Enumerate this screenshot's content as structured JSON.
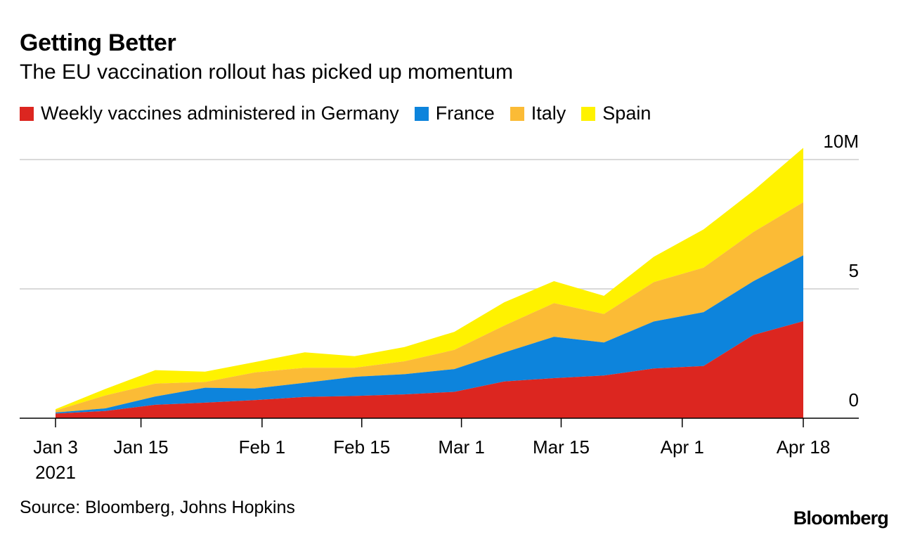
{
  "header": {
    "title": "Getting Better",
    "subtitle": "The EU vaccination rollout has picked up momentum"
  },
  "footer": {
    "source": "Source: Bloomberg, Johns Hopkins",
    "logo": "Bloomberg"
  },
  "chart_data": {
    "type": "area",
    "stacked": true,
    "title": "Getting Better",
    "subtitle": "The EU vaccination rollout has picked up momentum",
    "x": [
      "2021-01-03",
      "2021-01-10",
      "2021-01-17",
      "2021-01-24",
      "2021-01-31",
      "2021-02-07",
      "2021-02-14",
      "2021-02-21",
      "2021-02-28",
      "2021-03-07",
      "2021-03-14",
      "2021-03-21",
      "2021-03-28",
      "2021-04-04",
      "2021-04-11",
      "2021-04-18"
    ],
    "series": [
      {
        "name": "Weekly vaccines administered in Germany",
        "color": "#dc2620",
        "values": [
          0.18,
          0.28,
          0.52,
          0.6,
          0.7,
          0.82,
          0.86,
          0.92,
          1.02,
          1.42,
          1.55,
          1.65,
          1.92,
          2.02,
          3.22,
          3.75
        ]
      },
      {
        "name": "France",
        "color": "#0d84dc",
        "values": [
          0.04,
          0.1,
          0.32,
          0.58,
          0.45,
          0.55,
          0.74,
          0.78,
          0.88,
          1.12,
          1.6,
          1.28,
          1.82,
          2.08,
          2.08,
          2.55
        ]
      },
      {
        "name": "Italy",
        "color": "#fbbb36",
        "values": [
          0.08,
          0.5,
          0.5,
          0.22,
          0.62,
          0.58,
          0.35,
          0.5,
          0.74,
          1.04,
          1.3,
          1.1,
          1.52,
          1.72,
          1.9,
          2.05
        ]
      },
      {
        "name": "Spain",
        "color": "#fff200",
        "values": [
          0.05,
          0.25,
          0.52,
          0.4,
          0.4,
          0.6,
          0.45,
          0.55,
          0.7,
          0.9,
          0.85,
          0.7,
          0.98,
          1.48,
          1.6,
          2.1
        ]
      }
    ],
    "xticks": [
      {
        "date": "2021-01-03",
        "label": "Jan 3",
        "sublabel": "2021"
      },
      {
        "date": "2021-01-15",
        "label": "Jan 15"
      },
      {
        "date": "2021-02-01",
        "label": "Feb 1"
      },
      {
        "date": "2021-02-15",
        "label": "Feb 15"
      },
      {
        "date": "2021-03-01",
        "label": "Mar 1"
      },
      {
        "date": "2021-03-15",
        "label": "Mar 15"
      },
      {
        "date": "2021-04-01",
        "label": "Apr 1"
      },
      {
        "date": "2021-04-18",
        "label": "Apr 18"
      }
    ],
    "yticks": [
      {
        "value": 0,
        "label": "0"
      },
      {
        "value": 5,
        "label": "5"
      },
      {
        "value": 10,
        "label": "10M"
      }
    ],
    "ylim": [
      0,
      10
    ],
    "grid": true,
    "legend_position": "top-left"
  }
}
